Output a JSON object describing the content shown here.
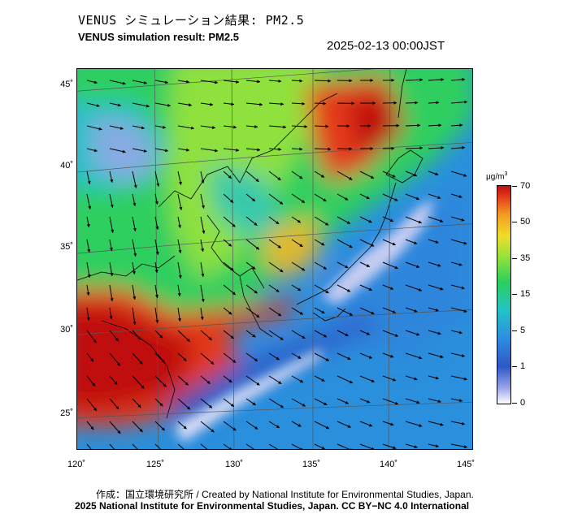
{
  "title_jp": "VENUS シミュレーション結果: PM2.5",
  "title_en": "VENUS simulation result: PM2.5",
  "datetime": "2025-02-13 00:00JST",
  "lat_labels": [
    "45˚",
    "40˚",
    "35˚",
    "30˚",
    "25˚"
  ],
  "lon_labels": [
    "120˚",
    "125˚",
    "130˚",
    "135˚",
    "140˚",
    "145˚"
  ],
  "colorbar": {
    "unit_main": "μg/m",
    "unit_sup": "3",
    "ticks": [
      "70",
      "50",
      "35",
      "15",
      "5",
      "1",
      "0"
    ],
    "colors": [
      "#ffffff",
      "#9aa6e8",
      "#2e58c8",
      "#2d8de0",
      "#22c3c8",
      "#2ccf5c",
      "#9ae23a",
      "#f2dc2a",
      "#f39a22",
      "#e43a1a",
      "#c01010"
    ]
  },
  "credit_line1": "作成：国立環境研究所 / Created by National Institute for Environmental Studies, Japan.",
  "credit_line2": "2025 National Institute for Environmental Studies, Japan. CC BY−NC 4.0 International"
}
